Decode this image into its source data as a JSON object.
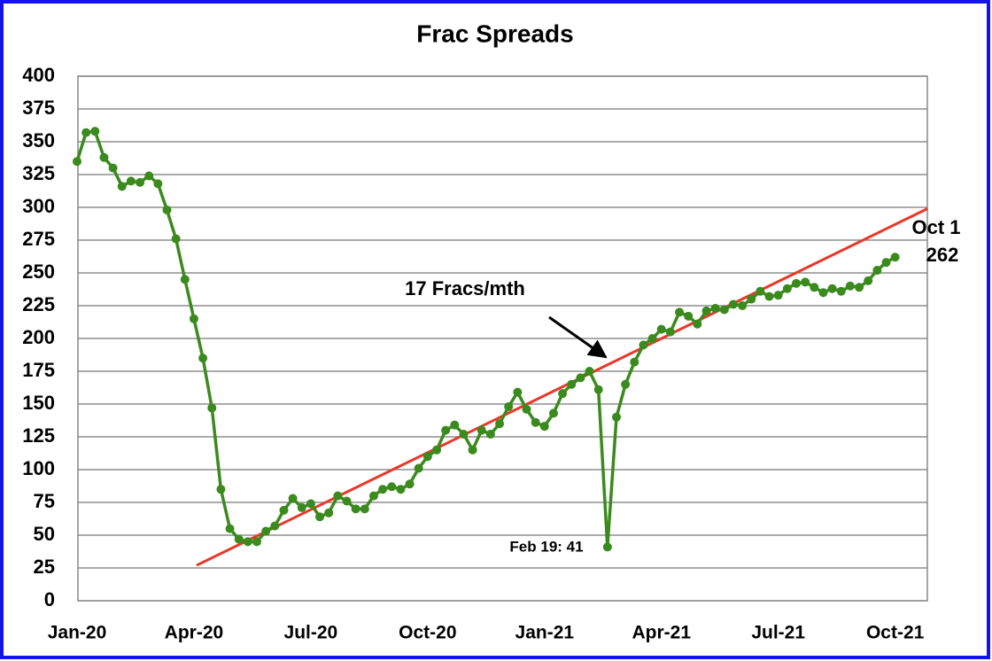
{
  "chart_data": {
    "type": "line",
    "title": "Frac Spreads",
    "categories": [
      "Jan-20",
      null,
      null,
      null,
      null,
      null,
      null,
      null,
      null,
      null,
      null,
      null,
      null,
      "Apr-20",
      null,
      null,
      null,
      null,
      null,
      null,
      null,
      null,
      null,
      null,
      null,
      null,
      "Jul-20",
      null,
      null,
      null,
      null,
      null,
      null,
      null,
      null,
      null,
      null,
      null,
      null,
      "Oct-20",
      null,
      null,
      null,
      null,
      null,
      null,
      null,
      null,
      null,
      null,
      null,
      null,
      "Jan-21",
      null,
      null,
      null,
      null,
      null,
      null,
      null,
      null,
      null,
      null,
      null,
      null,
      "Apr-21",
      null,
      null,
      null,
      null,
      null,
      null,
      null,
      null,
      null,
      null,
      null,
      null,
      "Jul-21",
      null,
      null,
      null,
      null,
      null,
      null,
      null,
      null,
      null,
      null,
      null,
      null,
      "Oct-21"
    ],
    "series": [
      {
        "name": "Frac Spreads",
        "color": "#3a8a1e",
        "values": [
          335,
          357,
          358,
          338,
          330,
          316,
          320,
          319,
          324,
          318,
          298,
          276,
          245,
          215,
          185,
          147,
          85,
          55,
          47,
          45,
          45,
          53,
          57,
          69,
          78,
          71,
          74,
          64,
          67,
          80,
          76,
          70,
          70,
          80,
          85,
          87,
          85,
          89,
          101,
          110,
          115,
          130,
          134,
          127,
          115,
          130,
          127,
          135,
          148,
          159,
          146,
          136,
          133,
          143,
          158,
          165,
          170,
          175,
          161,
          41,
          140,
          165,
          182,
          195,
          200,
          207,
          205,
          220,
          217,
          211,
          221,
          223,
          222,
          226,
          225,
          230,
          236,
          232,
          233,
          238,
          242,
          243,
          239,
          235,
          238,
          236,
          240,
          239,
          244,
          252,
          258,
          262
        ]
      }
    ],
    "trend": {
      "color": "#e8382a",
      "x": [
        13.3,
        94.6
      ],
      "values": [
        27,
        299
      ]
    },
    "annotations": [
      "17 Fracs/mth",
      "Feb 19: 41",
      "Oct 1"
    ],
    "ylim": [
      0,
      400
    ],
    "yticks": [
      0,
      25,
      50,
      75,
      100,
      125,
      150,
      175,
      200,
      225,
      250,
      275,
      300,
      325,
      350,
      375,
      400
    ],
    "grid": true
  }
}
